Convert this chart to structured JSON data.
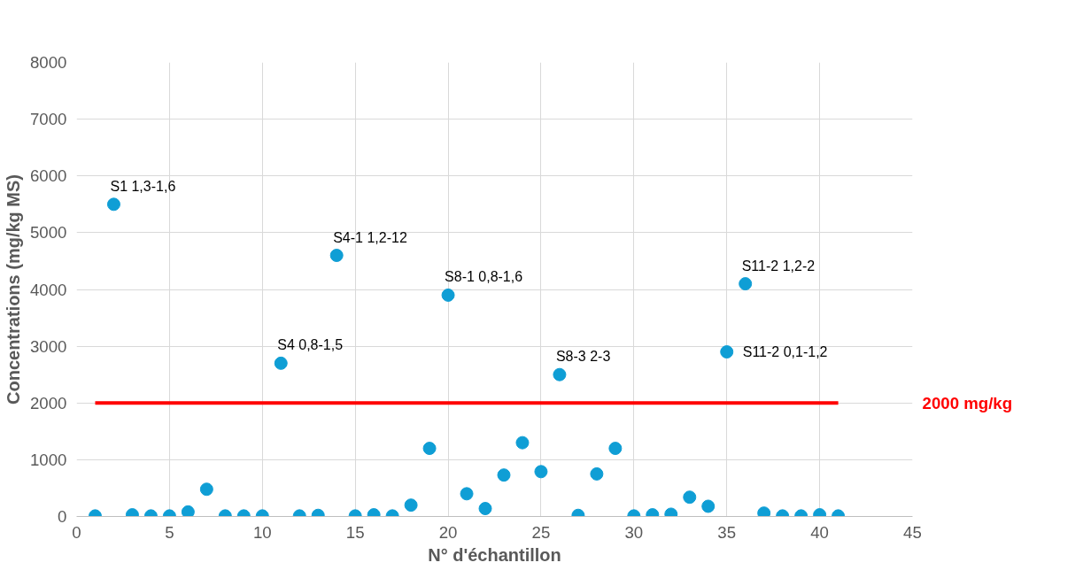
{
  "chart_data": {
    "type": "scatter",
    "xlabel": "N° d'échantillon",
    "ylabel": "Concentrations (mg/kg MS)",
    "x": [
      1,
      2,
      3,
      4,
      5,
      6,
      7,
      8,
      9,
      10,
      11,
      12,
      13,
      14,
      15,
      16,
      17,
      18,
      19,
      20,
      21,
      22,
      23,
      24,
      25,
      26,
      27,
      28,
      29,
      30,
      31,
      32,
      33,
      34,
      35,
      36,
      37,
      38,
      39,
      40,
      41
    ],
    "series": [
      {
        "color": "#0f9ed5",
        "values": [
          10,
          5500,
          30,
          10,
          10,
          80,
          480,
          10,
          10,
          10,
          2700,
          10,
          20,
          4600,
          10,
          30,
          10,
          200,
          1200,
          3900,
          400,
          140,
          730,
          1300,
          790,
          2500,
          20,
          750,
          1200,
          10,
          30,
          40,
          340,
          180,
          2900,
          4100,
          60,
          10,
          10,
          30,
          10
        ]
      }
    ],
    "xlim": [
      0,
      45
    ],
    "xticks": [
      0,
      5,
      10,
      15,
      20,
      25,
      30,
      35,
      40,
      45
    ],
    "ylim": [
      0,
      8000
    ],
    "yticks": [
      0,
      1000,
      2000,
      3000,
      4000,
      5000,
      6000,
      7000,
      8000
    ],
    "grid": true,
    "marker": "circle",
    "ref_lines": [
      {
        "axis": "y",
        "value": 2000,
        "label": "2000 mg/kg",
        "color": "#ff0000"
      }
    ],
    "annotations": [
      {
        "text": "S1 1,3-1,6",
        "x": 2,
        "y": 5500
      },
      {
        "text": "S4 0,8-1,5",
        "x": 11,
        "y": 2700
      },
      {
        "text": "S4-1 1,2-12",
        "x": 14,
        "y": 4600
      },
      {
        "text": "S8-1 0,8-1,6",
        "x": 20,
        "y": 3900
      },
      {
        "text": "S8-3 2-3",
        "x": 26,
        "y": 2500
      },
      {
        "text": "S11-2 0,1-1,2",
        "x": 35,
        "y": 2900
      },
      {
        "text": "S11-2 1,2-2",
        "x": 36,
        "y": 4100
      }
    ]
  }
}
